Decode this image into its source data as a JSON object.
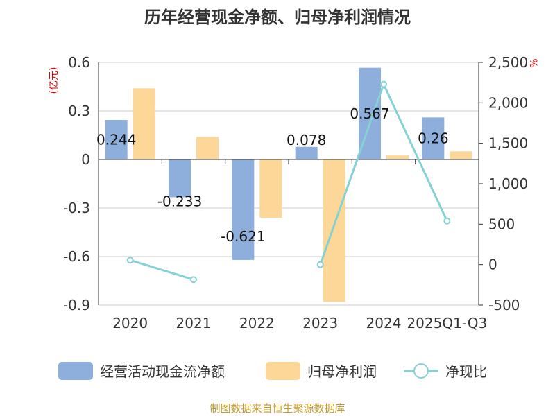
{
  "chart_data": {
    "type": "bar",
    "title": "历年经营现金净额、归母净利润情况",
    "categories": [
      "2020",
      "2021",
      "2022",
      "2023",
      "2024",
      "2025Q1-Q3"
    ],
    "series": [
      {
        "name": "经营活动现金流净额",
        "kind": "bar",
        "axis": "left",
        "color": "#8eaedb",
        "values": [
          0.244,
          -0.233,
          -0.621,
          0.078,
          0.567,
          0.26
        ],
        "labels": [
          "0.244",
          "-0.233",
          "-0.621",
          "0.078",
          "0.567",
          "0.26"
        ]
      },
      {
        "name": "归母净利润",
        "kind": "bar",
        "axis": "left",
        "color": "#fdd798",
        "values": [
          0.44,
          0.14,
          -0.36,
          -0.88,
          0.025,
          0.05
        ]
      },
      {
        "name": "净现比",
        "kind": "line",
        "axis": "right",
        "color": "#86d1d4",
        "values": [
          55,
          -185,
          null,
          0,
          2230,
          540
        ]
      }
    ],
    "y_left": {
      "label": "(亿元)",
      "ticks": [
        "0.6",
        "0.3",
        "0",
        "-0.3",
        "-0.6",
        "-0.9"
      ],
      "min": -0.9,
      "max": 0.6
    },
    "y_right": {
      "label": "%",
      "ticks": [
        "2,500",
        "2,000",
        "1,500",
        "1,000",
        "500",
        "0",
        "-500"
      ],
      "min": -500,
      "max": 2500
    },
    "grid": true,
    "legend_position": "bottom",
    "source": "制图数据来自恒生聚源数据库"
  }
}
